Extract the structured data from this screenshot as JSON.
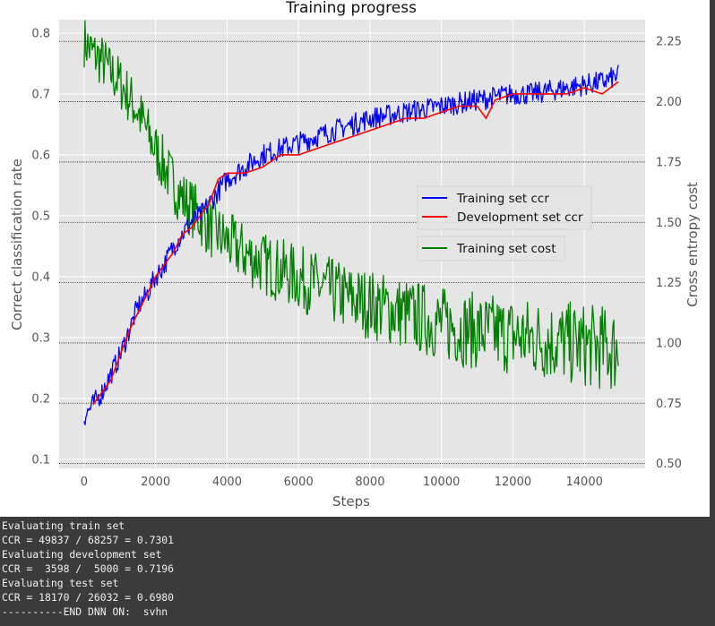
{
  "chart_data": {
    "type": "line",
    "title": "Training progress",
    "xlabel": "Steps",
    "ylabel_left": "Correct classification rate",
    "ylabel_right": "Cross entropy cost",
    "xlim": [
      -700,
      15700
    ],
    "ylim_left": [
      0.085,
      0.822
    ],
    "ylim_right": [
      0.48,
      2.34
    ],
    "xticks": [
      "0",
      "2000",
      "4000",
      "6000",
      "8000",
      "10000",
      "12000",
      "14000"
    ],
    "yticks_left": [
      "0.1",
      "0.2",
      "0.3",
      "0.4",
      "0.5",
      "0.6",
      "0.7",
      "0.8"
    ],
    "yticks_right": [
      "0.50",
      "0.75",
      "1.00",
      "1.25",
      "1.50",
      "1.75",
      "2.00",
      "2.25"
    ],
    "grid": "on",
    "legend_placement": "center-right",
    "series": [
      {
        "name": "Training set ccr",
        "axis": "left",
        "color": "#0000ff",
        "x": [
          0,
          250,
          500,
          750,
          1000,
          1250,
          1500,
          1750,
          2000,
          2250,
          2500,
          2750,
          3000,
          3250,
          3500,
          3750,
          4000,
          4500,
          5000,
          5500,
          6000,
          6500,
          7000,
          7500,
          8000,
          8500,
          9000,
          9500,
          10000,
          10500,
          11000,
          11500,
          12000,
          12500,
          13000,
          13500,
          14000,
          14500,
          14950
        ],
        "values": [
          0.17,
          0.19,
          0.21,
          0.24,
          0.27,
          0.31,
          0.35,
          0.37,
          0.4,
          0.42,
          0.45,
          0.47,
          0.49,
          0.5,
          0.52,
          0.54,
          0.56,
          0.58,
          0.6,
          0.61,
          0.62,
          0.63,
          0.64,
          0.65,
          0.66,
          0.665,
          0.67,
          0.675,
          0.68,
          0.685,
          0.69,
          0.695,
          0.7,
          0.7,
          0.705,
          0.71,
          0.715,
          0.72,
          0.73
        ]
      },
      {
        "name": "Development set ccr",
        "axis": "left",
        "color": "#ff0000",
        "x": [
          250,
          500,
          750,
          1000,
          1250,
          1500,
          1750,
          2000,
          2250,
          2500,
          2750,
          3000,
          3250,
          3500,
          3750,
          4000,
          4500,
          5000,
          5500,
          6000,
          6500,
          7000,
          7500,
          8000,
          8500,
          9000,
          9500,
          10000,
          10500,
          11000,
          11250,
          11500,
          12000,
          12500,
          13000,
          13500,
          14000,
          14500,
          14950
        ],
        "values": [
          0.19,
          0.21,
          0.23,
          0.27,
          0.31,
          0.34,
          0.37,
          0.4,
          0.42,
          0.44,
          0.47,
          0.48,
          0.5,
          0.52,
          0.56,
          0.57,
          0.57,
          0.58,
          0.6,
          0.6,
          0.61,
          0.62,
          0.63,
          0.64,
          0.65,
          0.66,
          0.66,
          0.67,
          0.68,
          0.68,
          0.66,
          0.69,
          0.7,
          0.7,
          0.7,
          0.7,
          0.71,
          0.7,
          0.72
        ]
      },
      {
        "name": "Training set cost",
        "axis": "right",
        "color": "#008000",
        "x": [
          0,
          250,
          500,
          750,
          1000,
          1250,
          1500,
          1750,
          2000,
          2250,
          2500,
          2750,
          3000,
          3250,
          3500,
          3750,
          4000,
          4500,
          5000,
          5500,
          6000,
          6500,
          7000,
          7500,
          8000,
          8500,
          9000,
          9500,
          10000,
          10500,
          11000,
          11500,
          12000,
          12500,
          13000,
          13500,
          14000,
          14500,
          14950
        ],
        "values": [
          2.25,
          2.2,
          2.17,
          2.12,
          2.08,
          2.02,
          1.96,
          1.88,
          1.8,
          1.73,
          1.66,
          1.6,
          1.56,
          1.52,
          1.48,
          1.45,
          1.42,
          1.37,
          1.33,
          1.3,
          1.27,
          1.24,
          1.21,
          1.18,
          1.16,
          1.14,
          1.12,
          1.1,
          1.08,
          1.06,
          1.05,
          1.04,
          1.03,
          1.02,
          1.01,
          1.0,
          0.99,
          0.98,
          0.97
        ]
      }
    ]
  },
  "console": {
    "lines": [
      "Evaluating train set",
      "CCR = 49837 / 68257 = 0.7301",
      "Evaluating development set",
      "CCR =  3598 /  5000 = 0.7196",
      "Evaluating test set",
      "CCR = 18170 / 26032 = 0.6980",
      "----------END DNN ON:  svhn"
    ]
  }
}
